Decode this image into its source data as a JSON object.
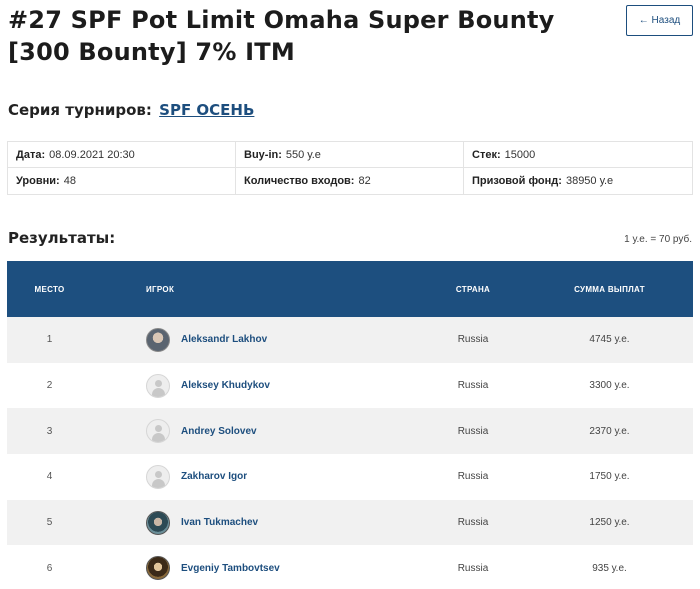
{
  "page": {
    "title": "#27 SPF Pot Limit Omaha Super Bounty [300 Bounty] 7% ITM",
    "back_label": "← Назад"
  },
  "series": {
    "label": "Серия турниров:",
    "link": "SPF ОСЕНЬ"
  },
  "info": {
    "date_label": "Дата:",
    "date_value": "08.09.2021 20:30",
    "buyin_label": "Buy-in:",
    "buyin_value": "550 у.е",
    "stack_label": "Стек:",
    "stack_value": "15000",
    "levels_label": "Уровни:",
    "levels_value": "48",
    "entries_label": "Количество входов:",
    "entries_value": "82",
    "prize_label": "Призовой фонд:",
    "prize_value": "38950 у.е"
  },
  "results": {
    "title": "Результаты:",
    "rate": "1 у.е. = 70 руб.",
    "headers": {
      "place": "МЕСТО",
      "player": "ИГРОК",
      "country": "СТРАНА",
      "payout": "СУММА ВЫПЛАТ"
    },
    "rows": [
      {
        "place": "1",
        "player": "Aleksandr Lakhov",
        "country": "Russia",
        "payout": "4745 у.е.",
        "avatar": "photo"
      },
      {
        "place": "2",
        "player": "Aleksey Khudykov",
        "country": "Russia",
        "payout": "3300 у.е.",
        "avatar": "default"
      },
      {
        "place": "3",
        "player": "Andrey Solovev",
        "country": "Russia",
        "payout": "2370 у.е.",
        "avatar": "default"
      },
      {
        "place": "4",
        "player": "Zakharov Igor",
        "country": "Russia",
        "payout": "1750 у.е.",
        "avatar": "default"
      },
      {
        "place": "5",
        "player": "Ivan Tukmachev",
        "country": "Russia",
        "payout": "1250 у.е.",
        "avatar": "photo"
      },
      {
        "place": "6",
        "player": "Evgeniy Tambovtsev",
        "country": "Russia",
        "payout": "935 у.е.",
        "avatar": "photo"
      }
    ]
  }
}
